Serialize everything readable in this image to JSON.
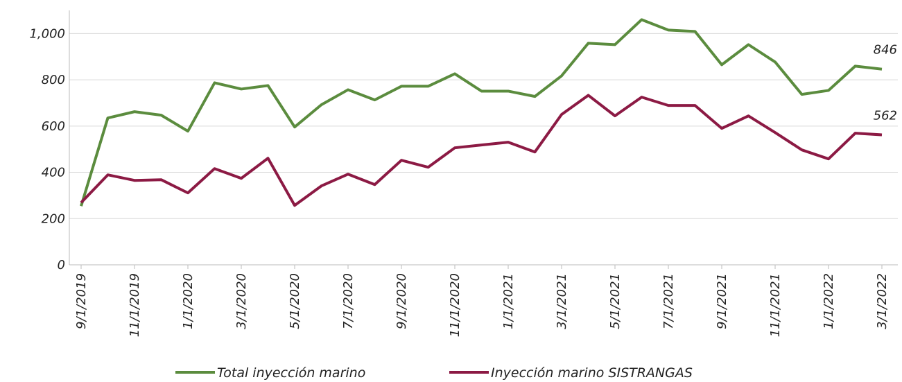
{
  "chart_data": {
    "type": "line",
    "categories": [
      "9/1/2019",
      null,
      "11/1/2019",
      null,
      "1/1/2020",
      null,
      "3/1/2020",
      null,
      "5/1/2020",
      null,
      "7/1/2020",
      null,
      "9/1/2020",
      null,
      "11/1/2020",
      null,
      "1/1/2021",
      null,
      "3/1/2021",
      null,
      "5/1/2021",
      null,
      "7/1/2021",
      null,
      "9/1/2021",
      null,
      "11/1/2021",
      null,
      "1/1/2022",
      null,
      "3/1/2022"
    ],
    "series": [
      {
        "name": "Total inyección marino",
        "color": "#5b8c3e",
        "values": [
          254,
          635,
          662,
          647,
          578,
          787,
          760,
          775,
          596,
          692,
          757,
          713,
          772,
          772,
          826,
          751,
          751,
          728,
          817,
          958,
          952,
          1060,
          1015,
          1009,
          865,
          952,
          877,
          737,
          754,
          859,
          846
        ]
      },
      {
        "name": "Inyección marino SISTRANGAS",
        "color": "#8c1a44",
        "values": [
          269,
          389,
          365,
          368,
          311,
          416,
          374,
          461,
          257,
          341,
          392,
          347,
          452,
          422,
          506,
          518,
          530,
          488,
          650,
          733,
          644,
          725,
          689,
          689,
          590,
          644,
          572,
          497,
          458,
          569,
          562
        ]
      }
    ],
    "ylim": [
      0,
      1100
    ],
    "yticks": [
      0,
      200,
      400,
      600,
      800,
      {
        "value": 1000,
        "label": "1,000"
      }
    ],
    "grid": true,
    "label_last": true,
    "legend": "bottom"
  }
}
